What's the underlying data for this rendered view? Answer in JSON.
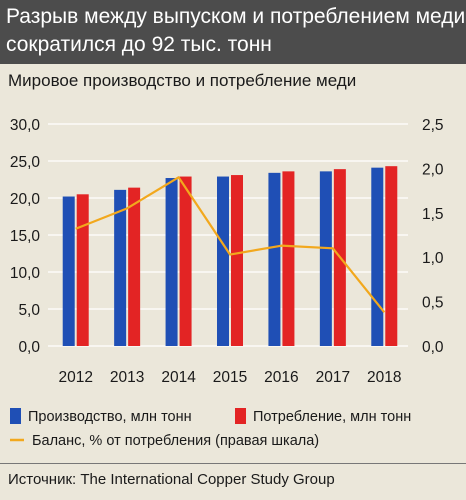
{
  "header": {
    "title_line1": "Разрыв между выпуском и потреблением меди",
    "title_line2": "сократился  до 92 тыс. тонн"
  },
  "subtitle": "Мировое производство и потребление меди",
  "source": "Источник: The International Copper Study Group",
  "colors": {
    "production": "#1f4fb5",
    "consumption": "#e32424",
    "balance": "#f2a81d",
    "header_bg": "#4c4c4c",
    "background": "#ebe7da"
  },
  "chart_data": {
    "type": "bar",
    "title": "Мировое производство и потребление меди",
    "categories": [
      "2012",
      "2013",
      "2014",
      "2015",
      "2016",
      "2017",
      "2018"
    ],
    "series": [
      {
        "name": "Производство, млн тонн",
        "type": "bar",
        "axis": "left",
        "values": [
          20.2,
          21.1,
          22.7,
          22.9,
          23.4,
          23.6,
          24.1
        ]
      },
      {
        "name": "Потребление, млн тонн",
        "type": "bar",
        "axis": "left",
        "values": [
          20.5,
          21.4,
          22.9,
          23.1,
          23.6,
          23.9,
          24.3
        ]
      },
      {
        "name": "Баланс, % от потребления (правая шкала)",
        "type": "line",
        "axis": "right",
        "values": [
          1.32,
          1.55,
          1.9,
          1.03,
          1.13,
          1.1,
          0.38
        ]
      }
    ],
    "y_left": {
      "min": 0,
      "max": 30,
      "ticks": [
        "0,0",
        "5,0",
        "10,0",
        "15,0",
        "20,0",
        "25,0",
        "30,0"
      ]
    },
    "y_right": {
      "min": 0,
      "max": 2.5,
      "ticks": [
        "0,0",
        "0,5",
        "1,0",
        "1,5",
        "2,0",
        "2,5"
      ]
    },
    "grid": true,
    "legend_position": "bottom"
  }
}
